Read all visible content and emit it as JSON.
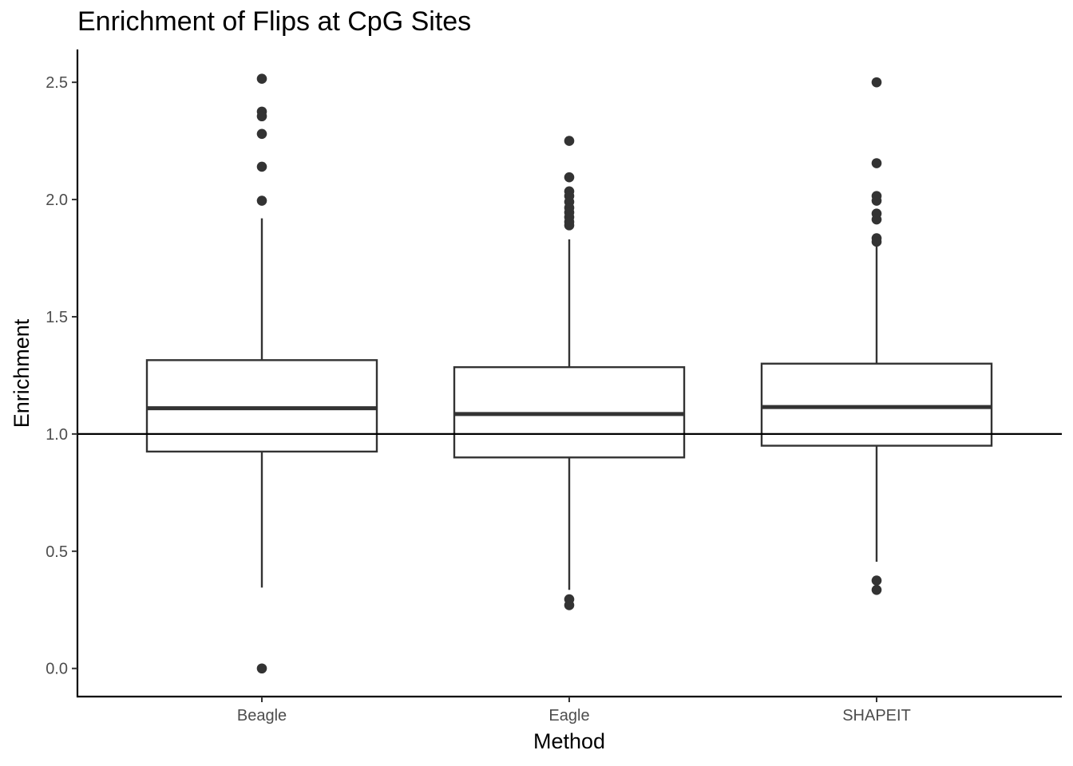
{
  "chart_data": {
    "type": "box",
    "title": "Enrichment of Flips at CpG Sites",
    "xlabel": "Method",
    "ylabel": "Enrichment",
    "ylim": [
      -0.12,
      2.64
    ],
    "y_ticks": [
      {
        "value": 0.0,
        "label": "0.0"
      },
      {
        "value": 0.5,
        "label": "0.5"
      },
      {
        "value": 1.0,
        "label": "1.0"
      },
      {
        "value": 1.5,
        "label": "1.5"
      },
      {
        "value": 2.0,
        "label": "2.0"
      },
      {
        "value": 2.5,
        "label": "2.5"
      }
    ],
    "reference_line": 1.0,
    "grid": false,
    "categories": [
      "Beagle",
      "Eagle",
      "SHAPEIT"
    ],
    "boxes": [
      {
        "category": "Beagle",
        "whisker_low": 0.345,
        "q1": 0.925,
        "median": 1.11,
        "q3": 1.315,
        "whisker_high": 1.92,
        "outliers": [
          2.515,
          2.375,
          2.355,
          2.28,
          2.14,
          1.995,
          0.0
        ]
      },
      {
        "category": "Eagle",
        "whisker_low": 0.335,
        "q1": 0.9,
        "median": 1.085,
        "q3": 1.285,
        "whisker_high": 1.83,
        "outliers": [
          2.25,
          2.095,
          2.035,
          2.015,
          1.99,
          1.965,
          1.945,
          1.925,
          1.905,
          1.89,
          0.295,
          0.27
        ]
      },
      {
        "category": "SHAPEIT",
        "whisker_low": 0.455,
        "q1": 0.95,
        "median": 1.115,
        "q3": 1.3,
        "whisker_high": 1.81,
        "outliers": [
          2.5,
          2.155,
          2.015,
          1.995,
          1.94,
          1.915,
          1.835,
          1.82,
          0.375,
          0.335
        ]
      }
    ]
  }
}
